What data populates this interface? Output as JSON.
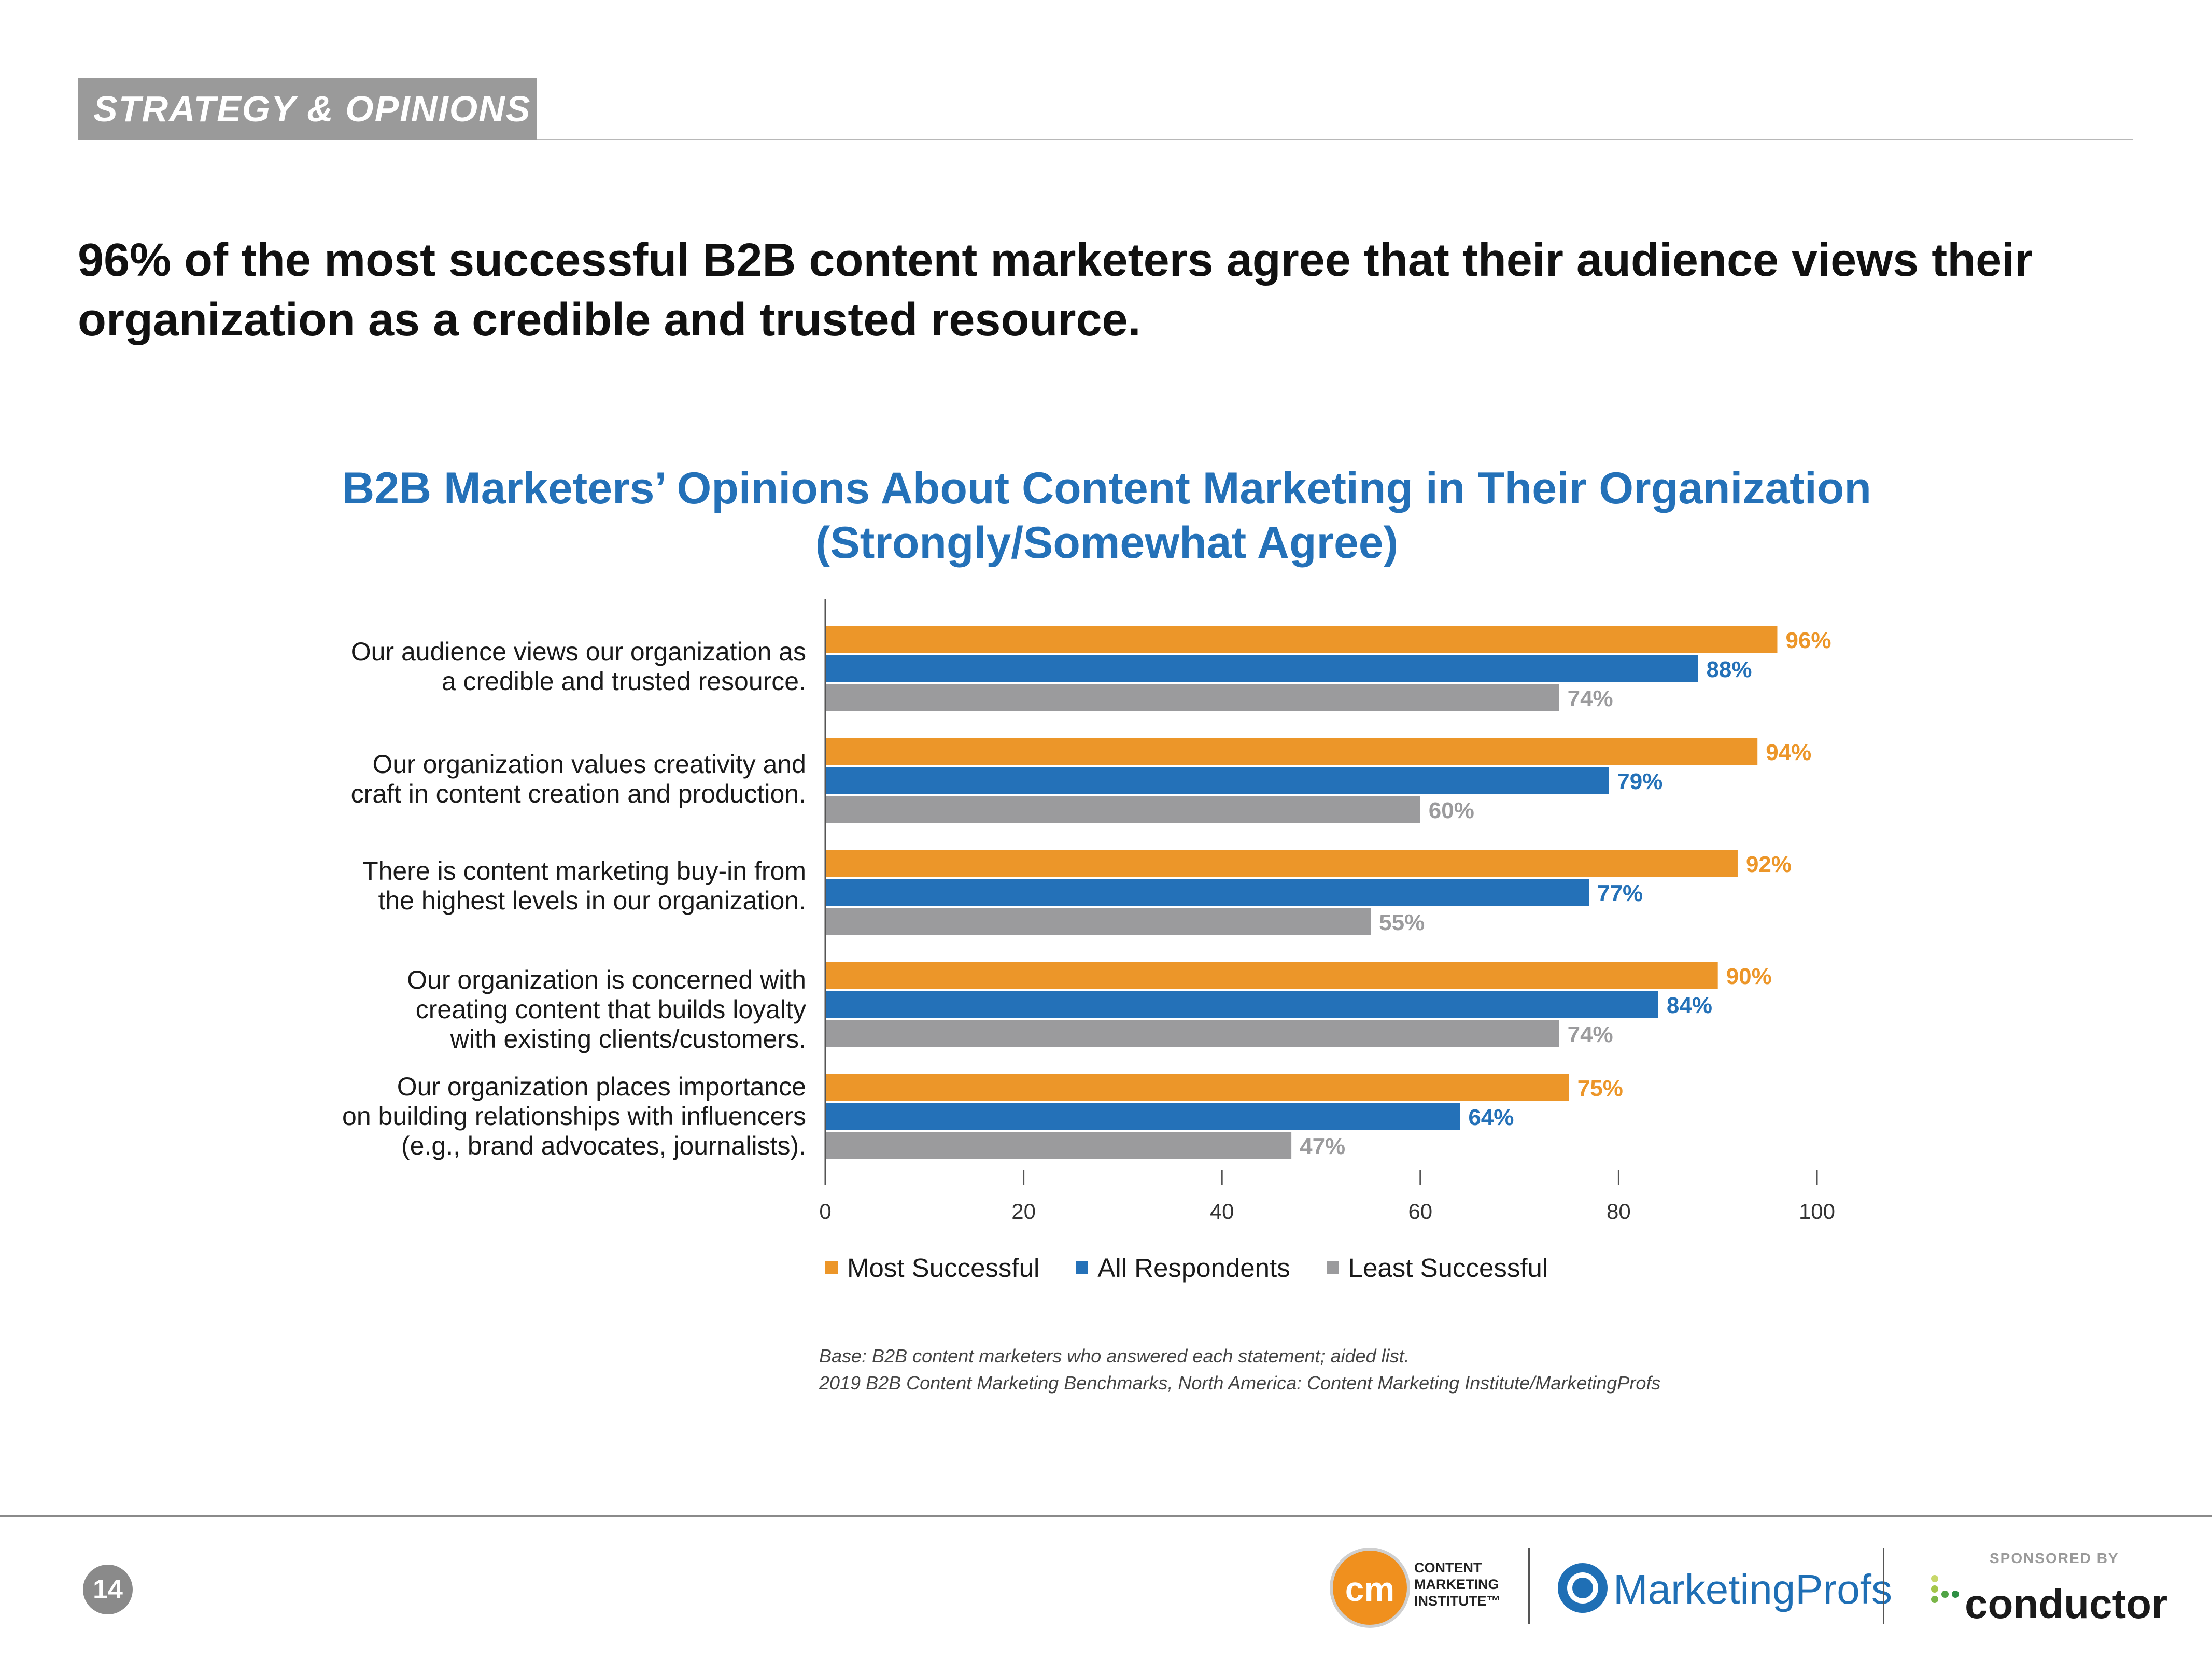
{
  "header": {
    "section": "STRATEGY & OPINIONS"
  },
  "headline": "96% of the most successful B2B content marketers agree that their audience views their organization as a credible and trusted resource.",
  "chart_data": {
    "type": "bar",
    "orientation": "horizontal",
    "title": "B2B Marketers’ Opinions About Content Marketing in Their Organization",
    "subtitle": "(Strongly/Somewhat Agree)",
    "categories": [
      [
        "Our audience views our organization as",
        "a credible and trusted resource."
      ],
      [
        "Our organization values creativity and",
        "craft in content creation and production."
      ],
      [
        "There is content marketing buy-in from",
        "the highest levels in our organization."
      ],
      [
        "Our organization is concerned with",
        "creating content that builds loyalty",
        "with existing clients/customers."
      ],
      [
        "Our organization places importance",
        "on building relationships with influencers",
        "(e.g., brand advocates, journalists)."
      ]
    ],
    "series": [
      {
        "name": "Most Successful",
        "color": "#ec9629",
        "values": [
          96,
          94,
          92,
          90,
          75
        ]
      },
      {
        "name": "All Respondents",
        "color": "#2471b8",
        "values": [
          88,
          79,
          77,
          84,
          64
        ]
      },
      {
        "name": "Least Successful",
        "color": "#9b9b9d",
        "values": [
          74,
          60,
          55,
          74,
          47
        ]
      }
    ],
    "value_suffix": "%",
    "xlim": [
      0,
      100
    ],
    "xticks": [
      0,
      20,
      40,
      60,
      80,
      100
    ],
    "legend": "bottom"
  },
  "notes": [
    "Base: B2B content marketers who answered each statement; aided list.",
    "2019 B2B Content Marketing Benchmarks, North America: Content Marketing Institute/MarketingProfs"
  ],
  "footer": {
    "page_number": "14",
    "cmi_mark": "cm",
    "cmi_name": [
      "CONTENT",
      "MARKETING",
      "INSTITUTE™"
    ],
    "mp_name": "MarketingProfs",
    "sponsored_by": "SPONSORED BY",
    "conductor_name": "conductor"
  }
}
